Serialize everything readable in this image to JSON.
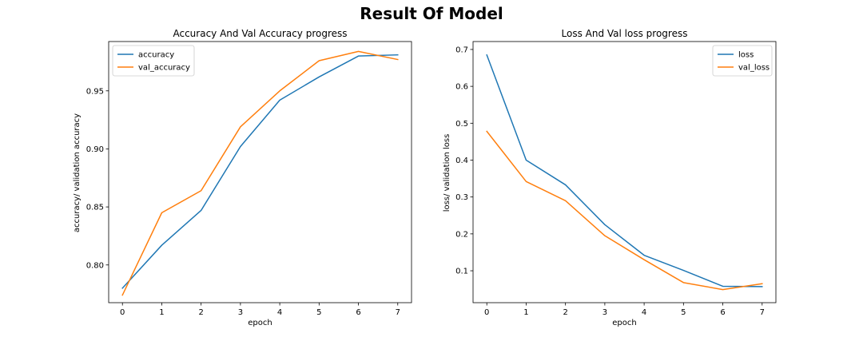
{
  "figure": {
    "suptitle": "Result Of Model"
  },
  "chart_data": [
    {
      "type": "line",
      "title": "Accuracy And Val Accuracy progress",
      "xlabel": "epoch",
      "ylabel": "accuracy/ validation accuracy",
      "x": [
        0,
        1,
        2,
        3,
        4,
        5,
        6,
        7
      ],
      "xlim": [
        -0.35,
        7.35
      ],
      "ylim": [
        0.7675,
        0.9925
      ],
      "xticks": [
        0,
        1,
        2,
        3,
        4,
        5,
        6,
        7
      ],
      "yticks": [
        0.8,
        0.85,
        0.9,
        0.95
      ],
      "ytick_labels": [
        "0.80",
        "0.85",
        "0.90",
        "0.95"
      ],
      "legend_position": "top-left",
      "grid": false,
      "series": [
        {
          "name": "accuracy",
          "color": "#1f77b4",
          "values": [
            0.78,
            0.817,
            0.847,
            0.902,
            0.942,
            0.962,
            0.98,
            0.981
          ]
        },
        {
          "name": "val_accuracy",
          "color": "#ff7f0e",
          "values": [
            0.774,
            0.845,
            0.864,
            0.919,
            0.95,
            0.976,
            0.984,
            0.977
          ]
        }
      ]
    },
    {
      "type": "line",
      "title": "Loss And Val loss progress",
      "xlabel": "epoch",
      "ylabel": "loss/ validation loss",
      "x": [
        0,
        1,
        2,
        3,
        4,
        5,
        6,
        7
      ],
      "xlim": [
        -0.35,
        7.35
      ],
      "ylim": [
        0.0135,
        0.7215
      ],
      "xticks": [
        0,
        1,
        2,
        3,
        4,
        5,
        6,
        7
      ],
      "yticks": [
        0.1,
        0.2,
        0.3,
        0.4,
        0.5,
        0.6,
        0.7
      ],
      "ytick_labels": [
        "0.1",
        "0.2",
        "0.3",
        "0.4",
        "0.5",
        "0.6",
        "0.7"
      ],
      "legend_position": "top-right",
      "grid": false,
      "series": [
        {
          "name": "loss",
          "color": "#1f77b4",
          "values": [
            0.685,
            0.4,
            0.333,
            0.225,
            0.142,
            0.101,
            0.058,
            0.057
          ]
        },
        {
          "name": "val_loss",
          "color": "#ff7f0e",
          "values": [
            0.478,
            0.342,
            0.29,
            0.195,
            0.13,
            0.068,
            0.049,
            0.065
          ]
        }
      ]
    }
  ]
}
